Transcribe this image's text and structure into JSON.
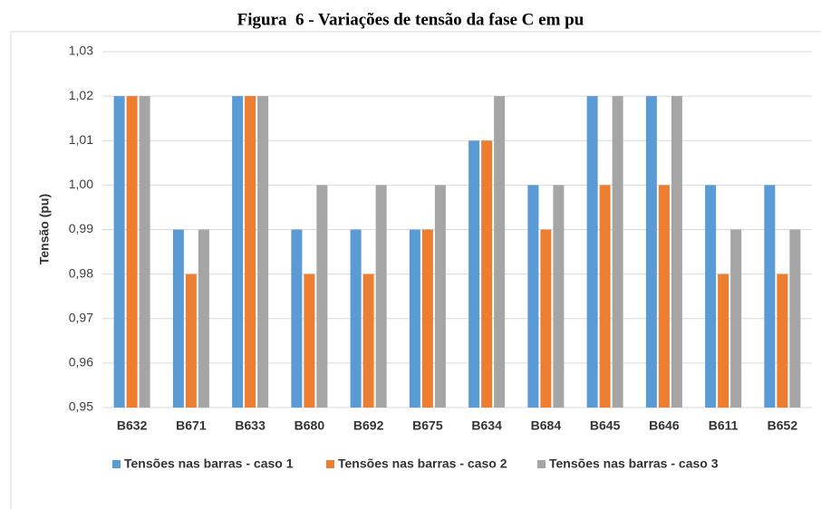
{
  "chart_data": {
    "type": "bar",
    "title": "Figura  6 - Variações de tensão da fase C em pu",
    "y_label": "Tensão (pu)",
    "categories": [
      "B632",
      "B671",
      "B633",
      "B680",
      "B692",
      "B675",
      "B634",
      "B684",
      "B645",
      "B646",
      "B611",
      "B652"
    ],
    "series": [
      {
        "name": "Tensões nas barras - caso 1",
        "color": "#5b9bd5",
        "values": [
          1.02,
          0.99,
          1.02,
          0.99,
          0.99,
          0.99,
          1.01,
          1.0,
          1.02,
          1.02,
          1.0,
          1.0
        ]
      },
      {
        "name": "Tensões nas barras - caso 2",
        "color": "#ed7d31",
        "values": [
          1.02,
          0.98,
          1.02,
          0.98,
          0.98,
          0.99,
          1.01,
          0.99,
          1.0,
          1.0,
          0.98,
          0.98
        ]
      },
      {
        "name": "Tensões nas barras - caso 3",
        "color": "#a5a5a5",
        "values": [
          1.02,
          0.99,
          1.02,
          1.0,
          1.0,
          1.0,
          1.02,
          1.0,
          1.02,
          1.02,
          0.99,
          0.99
        ]
      }
    ],
    "ylim": [
      0.95,
      1.03
    ],
    "yticks": [
      {
        "value": 0.95,
        "label": "0,95"
      },
      {
        "value": 0.96,
        "label": "0,96"
      },
      {
        "value": 0.97,
        "label": "0,97"
      },
      {
        "value": 0.98,
        "label": "0,98"
      },
      {
        "value": 0.99,
        "label": "0,99"
      },
      {
        "value": 1.0,
        "label": "1,00"
      },
      {
        "value": 1.01,
        "label": "1,01"
      },
      {
        "value": 1.02,
        "label": "1,02"
      },
      {
        "value": 1.03,
        "label": "1,03"
      }
    ],
    "grid": true,
    "legend": "bottom"
  }
}
